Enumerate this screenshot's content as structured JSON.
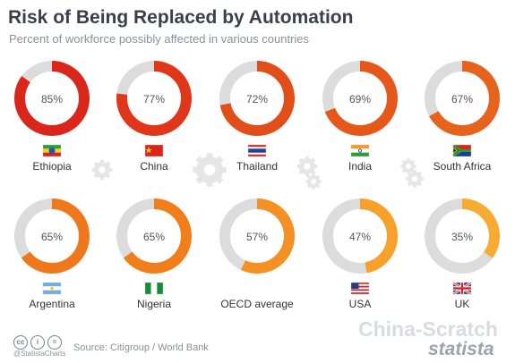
{
  "header": {
    "title": "Risk of Being Replaced by Automation",
    "subtitle": "Percent of workforce possibly affected in various countries"
  },
  "footer": {
    "handle": "@StatistaCharts",
    "source": "Source: Citigroup / World Bank",
    "watermark": "China-Scratch",
    "brand": "statista"
  },
  "chart_data": {
    "type": "donut",
    "unit": "%",
    "categories": [
      "Ethiopia",
      "China",
      "Thailand",
      "India",
      "South Africa",
      "Argentina",
      "Nigeria",
      "OECD average",
      "USA",
      "UK"
    ],
    "values": [
      85,
      77,
      72,
      69,
      67,
      65,
      65,
      57,
      47,
      35
    ],
    "labels": [
      "85%",
      "77%",
      "72%",
      "69%",
      "67%",
      "65%",
      "65%",
      "57%",
      "47%",
      "35%"
    ],
    "flags": [
      "ethiopia",
      "china",
      "thailand",
      "india",
      "south-africa",
      "argentina",
      "nigeria",
      "",
      "usa",
      "uk"
    ],
    "colors": [
      "#d9271c",
      "#e0371a",
      "#e04e19",
      "#e5581a",
      "#e6631b",
      "#ef781c",
      "#f07e1b",
      "#f49024",
      "#f7a12a",
      "#f7ab33"
    ],
    "track_color": "#dcdcdc"
  }
}
